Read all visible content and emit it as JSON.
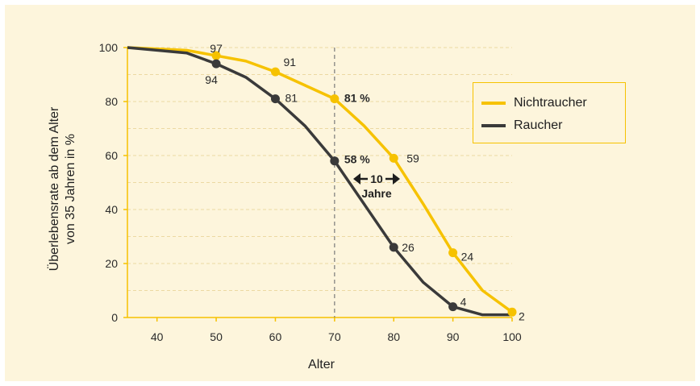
{
  "chart_data": {
    "type": "line",
    "xlabel": "Alter",
    "ylabel_line1": "Überlebensrate ab dem Alter",
    "ylabel_line2": "von 35 Jahren in %",
    "xlim": [
      35,
      100
    ],
    "ylim": [
      0,
      100
    ],
    "x_ticks": [
      40,
      50,
      60,
      70,
      80,
      90,
      100
    ],
    "y_ticks": [
      0,
      20,
      40,
      60,
      80,
      100
    ],
    "grid": "horizontal dashed",
    "legend": "right",
    "series": [
      {
        "name": "Nichtraucher",
        "color": "#f6c200",
        "x": [
          35,
          45,
          50,
          55,
          60,
          65,
          70,
          75,
          80,
          85,
          90,
          95,
          100
        ],
        "y": [
          100,
          99,
          97,
          95,
          91,
          86,
          81,
          71,
          59,
          42,
          24,
          10,
          2
        ],
        "labeled_points": [
          {
            "x": 50,
            "y": 97,
            "label": "97"
          },
          {
            "x": 60,
            "y": 91,
            "label": "91"
          },
          {
            "x": 70,
            "y": 81,
            "label": "81 %"
          },
          {
            "x": 80,
            "y": 59,
            "label": "59"
          },
          {
            "x": 90,
            "y": 24,
            "label": "24"
          },
          {
            "x": 100,
            "y": 2,
            "label": "2"
          }
        ]
      },
      {
        "name": "Raucher",
        "color": "#3a3a3a",
        "x": [
          35,
          45,
          50,
          55,
          60,
          65,
          70,
          75,
          80,
          85,
          90,
          95,
          100
        ],
        "y": [
          100,
          98,
          94,
          89,
          81,
          71,
          58,
          42,
          26,
          13,
          4,
          1,
          1
        ],
        "labeled_points": [
          {
            "x": 50,
            "y": 94,
            "label": "94"
          },
          {
            "x": 60,
            "y": 81,
            "label": "81"
          },
          {
            "x": 70,
            "y": 58,
            "label": "58 %"
          },
          {
            "x": 80,
            "y": 26,
            "label": "26"
          },
          {
            "x": 90,
            "y": 4,
            "label": "4"
          }
        ]
      }
    ],
    "annotations": {
      "vertical_line_x": 70,
      "gap_label_line1": "10",
      "gap_label_line2": "Jahre"
    }
  },
  "legend": {
    "nichtraucher": "Nichtraucher",
    "raucher": "Raucher"
  }
}
